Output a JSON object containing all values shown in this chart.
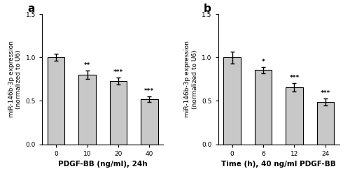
{
  "panel_a": {
    "label": "a",
    "categories": [
      "0",
      "10",
      "20",
      "40"
    ],
    "values": [
      1.0,
      0.8,
      0.73,
      0.52
    ],
    "errors": [
      0.04,
      0.05,
      0.04,
      0.03
    ],
    "significance": [
      "",
      "**",
      "***",
      "***"
    ],
    "xlabel": "PDGF-BB (ng/ml), 24h",
    "ylabel": "miR-146b-3p expression\n(normalized to U6)",
    "ylim": [
      0,
      1.5
    ],
    "yticks": [
      0.0,
      0.5,
      1.0,
      1.5
    ]
  },
  "panel_b": {
    "label": "b",
    "categories": [
      "0",
      "6",
      "12",
      "24"
    ],
    "values": [
      1.0,
      0.855,
      0.655,
      0.485
    ],
    "errors": [
      0.07,
      0.035,
      0.05,
      0.04
    ],
    "significance": [
      "",
      "*",
      "***",
      "***"
    ],
    "xlabel": "Time (h), 40 ng/ml PDGF-BB",
    "ylabel": "miR-146b-3p expression\n(normalized to U6)",
    "ylim": [
      0,
      1.5
    ],
    "yticks": [
      0.0,
      0.5,
      1.0,
      1.5
    ]
  },
  "bar_color": "#c8c8c8",
  "bar_edgecolor": "#000000",
  "bar_width": 0.55,
  "sig_fontsize": 6.5,
  "tick_fontsize": 6.5,
  "ylabel_fontsize": 6.5,
  "xlabel_fontsize": 7.5,
  "panel_label_fontsize": 11,
  "capsize": 2.5,
  "error_linewidth": 1.0
}
